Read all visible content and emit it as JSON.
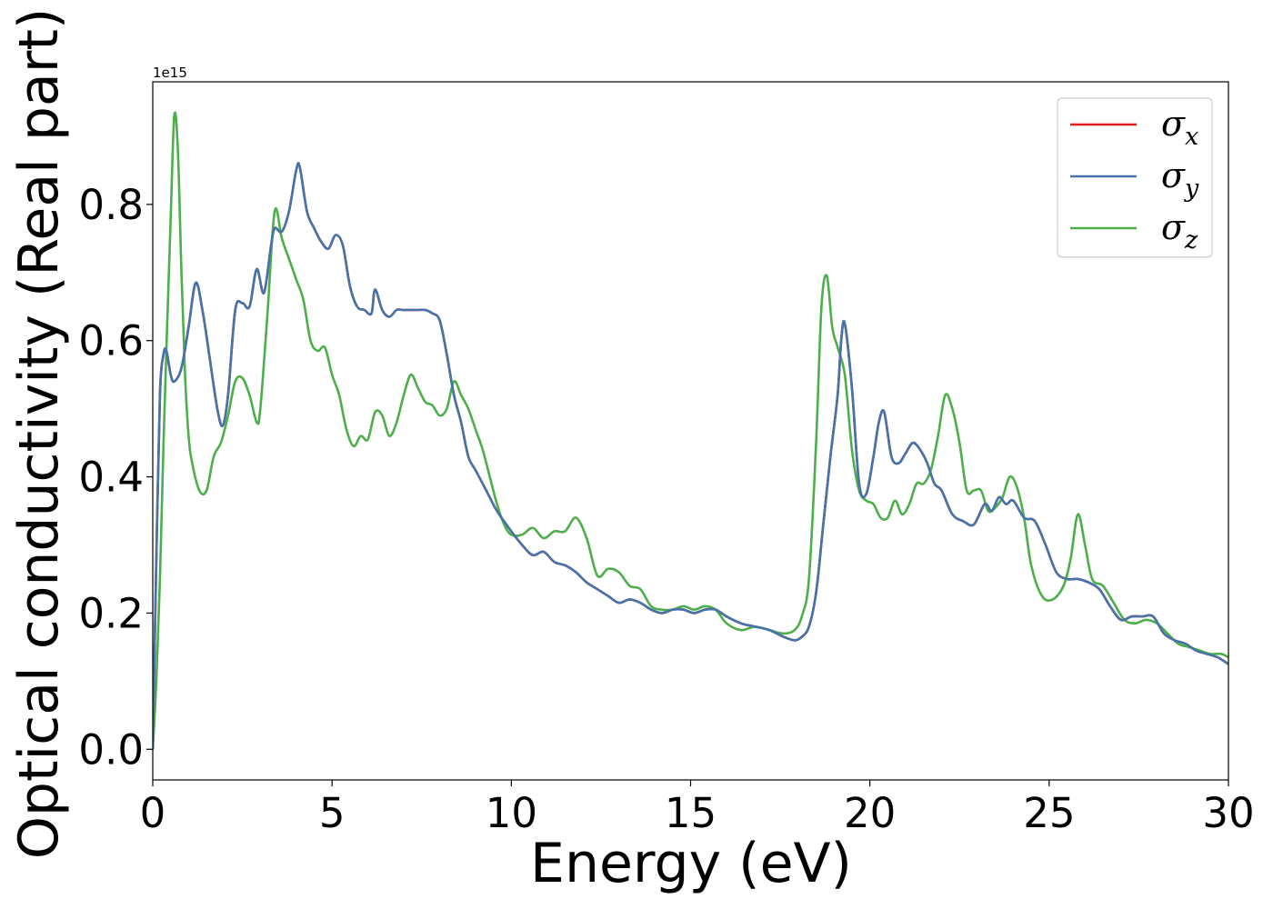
{
  "chart_data": {
    "type": "line",
    "title": "",
    "xlabel": "Energy (eV)",
    "ylabel": "Optical conductivity (Real part)",
    "y_offset_text": "1e15",
    "y_scale_multiplier": 1000000000000000.0,
    "xlim": [
      0,
      30
    ],
    "ylim": [
      -0.045,
      0.98
    ],
    "xticks": [
      0,
      5,
      10,
      15,
      20,
      25,
      30
    ],
    "xtick_labels": [
      "0",
      "5",
      "10",
      "15",
      "20",
      "25",
      "30"
    ],
    "yticks": [
      0.0,
      0.2,
      0.4,
      0.6,
      0.8
    ],
    "ytick_labels": [
      "0.0",
      "0.2",
      "0.4",
      "0.6",
      "0.8"
    ],
    "grid": false,
    "legend_position": "top-right",
    "legend": [
      {
        "symbol": "σ",
        "subscript": "x",
        "color": "#e41a1c"
      },
      {
        "symbol": "σ",
        "subscript": "y",
        "color": "#4474aa"
      },
      {
        "symbol": "σ",
        "subscript": "z",
        "color": "#4daf4a"
      }
    ],
    "series": [
      {
        "name": "σx",
        "color": "#e41a1c",
        "x": [
          0,
          0.1,
          0.2,
          0.3,
          0.38,
          0.5,
          0.6,
          0.8,
          1.0,
          1.2,
          1.4,
          1.6,
          1.8,
          1.95,
          2.1,
          2.3,
          2.5,
          2.7,
          2.9,
          3.1,
          3.3,
          3.4,
          3.6,
          3.8,
          4.0,
          4.1,
          4.3,
          4.5,
          4.7,
          4.9,
          5.1,
          5.3,
          5.5,
          5.7,
          5.9,
          6.1,
          6.2,
          6.4,
          6.6,
          6.8,
          7.0,
          7.2,
          7.4,
          7.6,
          7.8,
          8.0,
          8.2,
          8.4,
          8.6,
          8.8,
          9.0,
          9.3,
          9.6,
          10.0,
          10.3,
          10.6,
          10.9,
          11.2,
          11.5,
          11.8,
          12.1,
          12.4,
          12.7,
          13.0,
          13.3,
          13.6,
          13.9,
          14.2,
          14.5,
          14.8,
          15.1,
          15.4,
          15.7,
          16.0,
          16.4,
          16.8,
          17.2,
          17.6,
          17.9,
          18.1,
          18.3,
          18.5,
          18.7,
          18.9,
          19.1,
          19.2,
          19.3,
          19.5,
          19.7,
          19.9,
          20.1,
          20.25,
          20.4,
          20.6,
          20.8,
          21.0,
          21.2,
          21.4,
          21.6,
          21.8,
          22.0,
          22.3,
          22.6,
          22.9,
          23.2,
          23.4,
          23.6,
          23.8,
          24.0,
          24.3,
          24.6,
          24.9,
          25.2,
          25.5,
          25.8,
          26.1,
          26.4,
          26.7,
          27.0,
          27.3,
          27.6,
          27.9,
          28.2,
          28.5,
          28.8,
          29.1,
          29.4,
          29.7,
          30.0
        ],
        "y": [
          0.0,
          0.28,
          0.52,
          0.58,
          0.585,
          0.55,
          0.54,
          0.56,
          0.62,
          0.685,
          0.64,
          0.57,
          0.5,
          0.475,
          0.52,
          0.645,
          0.655,
          0.65,
          0.705,
          0.67,
          0.74,
          0.765,
          0.76,
          0.79,
          0.85,
          0.855,
          0.79,
          0.765,
          0.745,
          0.735,
          0.755,
          0.74,
          0.68,
          0.65,
          0.645,
          0.64,
          0.675,
          0.645,
          0.635,
          0.645,
          0.645,
          0.645,
          0.645,
          0.645,
          0.64,
          0.63,
          0.58,
          0.52,
          0.48,
          0.43,
          0.41,
          0.38,
          0.35,
          0.32,
          0.3,
          0.285,
          0.29,
          0.275,
          0.27,
          0.26,
          0.245,
          0.235,
          0.225,
          0.215,
          0.22,
          0.215,
          0.205,
          0.2,
          0.205,
          0.205,
          0.2,
          0.205,
          0.205,
          0.195,
          0.185,
          0.18,
          0.175,
          0.165,
          0.16,
          0.165,
          0.18,
          0.23,
          0.33,
          0.43,
          0.52,
          0.6,
          0.625,
          0.53,
          0.39,
          0.375,
          0.43,
          0.48,
          0.495,
          0.43,
          0.42,
          0.435,
          0.45,
          0.44,
          0.42,
          0.39,
          0.38,
          0.345,
          0.335,
          0.33,
          0.36,
          0.35,
          0.37,
          0.36,
          0.365,
          0.34,
          0.335,
          0.3,
          0.26,
          0.25,
          0.25,
          0.245,
          0.235,
          0.21,
          0.19,
          0.195,
          0.195,
          0.195,
          0.17,
          0.16,
          0.155,
          0.145,
          0.14,
          0.135,
          0.125
        ]
      },
      {
        "name": "σy",
        "color": "#4474aa",
        "x": [
          0,
          0.1,
          0.2,
          0.3,
          0.38,
          0.5,
          0.6,
          0.8,
          1.0,
          1.2,
          1.4,
          1.6,
          1.8,
          1.95,
          2.1,
          2.3,
          2.5,
          2.7,
          2.9,
          3.1,
          3.3,
          3.4,
          3.6,
          3.8,
          4.0,
          4.1,
          4.3,
          4.5,
          4.7,
          4.9,
          5.1,
          5.3,
          5.5,
          5.7,
          5.9,
          6.1,
          6.2,
          6.4,
          6.6,
          6.8,
          7.0,
          7.2,
          7.4,
          7.6,
          7.8,
          8.0,
          8.2,
          8.4,
          8.6,
          8.8,
          9.0,
          9.3,
          9.6,
          10.0,
          10.3,
          10.6,
          10.9,
          11.2,
          11.5,
          11.8,
          12.1,
          12.4,
          12.7,
          13.0,
          13.3,
          13.6,
          13.9,
          14.2,
          14.5,
          14.8,
          15.1,
          15.4,
          15.7,
          16.0,
          16.4,
          16.8,
          17.2,
          17.6,
          17.9,
          18.1,
          18.3,
          18.5,
          18.7,
          18.9,
          19.1,
          19.2,
          19.3,
          19.5,
          19.7,
          19.9,
          20.1,
          20.25,
          20.4,
          20.6,
          20.8,
          21.0,
          21.2,
          21.4,
          21.6,
          21.8,
          22.0,
          22.3,
          22.6,
          22.9,
          23.2,
          23.4,
          23.6,
          23.8,
          24.0,
          24.3,
          24.6,
          24.9,
          25.2,
          25.5,
          25.8,
          26.1,
          26.4,
          26.7,
          27.0,
          27.3,
          27.6,
          27.9,
          28.2,
          28.5,
          28.8,
          29.1,
          29.4,
          29.7,
          30.0
        ],
        "y": [
          0.0,
          0.28,
          0.52,
          0.58,
          0.585,
          0.55,
          0.54,
          0.56,
          0.62,
          0.685,
          0.64,
          0.57,
          0.5,
          0.475,
          0.52,
          0.645,
          0.655,
          0.65,
          0.705,
          0.67,
          0.74,
          0.765,
          0.76,
          0.79,
          0.85,
          0.855,
          0.79,
          0.765,
          0.745,
          0.735,
          0.755,
          0.74,
          0.68,
          0.65,
          0.645,
          0.64,
          0.675,
          0.645,
          0.635,
          0.645,
          0.645,
          0.645,
          0.645,
          0.645,
          0.64,
          0.63,
          0.58,
          0.52,
          0.48,
          0.43,
          0.41,
          0.38,
          0.35,
          0.32,
          0.3,
          0.285,
          0.29,
          0.275,
          0.27,
          0.26,
          0.245,
          0.235,
          0.225,
          0.215,
          0.22,
          0.215,
          0.205,
          0.2,
          0.205,
          0.205,
          0.2,
          0.205,
          0.205,
          0.195,
          0.185,
          0.18,
          0.175,
          0.165,
          0.16,
          0.165,
          0.18,
          0.23,
          0.33,
          0.43,
          0.52,
          0.6,
          0.625,
          0.53,
          0.39,
          0.375,
          0.43,
          0.48,
          0.495,
          0.43,
          0.42,
          0.435,
          0.45,
          0.44,
          0.42,
          0.39,
          0.38,
          0.345,
          0.335,
          0.33,
          0.36,
          0.35,
          0.37,
          0.36,
          0.365,
          0.34,
          0.335,
          0.3,
          0.26,
          0.25,
          0.25,
          0.245,
          0.235,
          0.21,
          0.19,
          0.195,
          0.195,
          0.195,
          0.17,
          0.16,
          0.155,
          0.145,
          0.14,
          0.135,
          0.125
        ]
      },
      {
        "name": "σz",
        "color": "#4daf4a",
        "x": [
          0,
          0.1,
          0.2,
          0.3,
          0.4,
          0.5,
          0.6,
          0.7,
          0.8,
          0.9,
          1.0,
          1.1,
          1.3,
          1.5,
          1.7,
          1.9,
          2.1,
          2.3,
          2.5,
          2.7,
          2.9,
          3.0,
          3.2,
          3.4,
          3.6,
          3.8,
          4.0,
          4.2,
          4.4,
          4.6,
          4.8,
          5.0,
          5.2,
          5.4,
          5.6,
          5.8,
          6.0,
          6.2,
          6.4,
          6.6,
          6.8,
          7.0,
          7.2,
          7.4,
          7.6,
          7.8,
          8.0,
          8.2,
          8.4,
          8.6,
          8.8,
          9.0,
          9.2,
          9.4,
          9.6,
          9.8,
          10.0,
          10.3,
          10.6,
          10.9,
          11.2,
          11.5,
          11.8,
          12.1,
          12.4,
          12.7,
          13.0,
          13.3,
          13.6,
          13.9,
          14.2,
          14.5,
          14.8,
          15.1,
          15.4,
          15.7,
          16.0,
          16.4,
          16.8,
          17.2,
          17.6,
          17.9,
          18.1,
          18.3,
          18.5,
          18.65,
          18.8,
          18.95,
          19.1,
          19.3,
          19.5,
          19.7,
          19.9,
          20.1,
          20.3,
          20.5,
          20.7,
          20.9,
          21.1,
          21.3,
          21.5,
          21.7,
          21.9,
          22.1,
          22.3,
          22.5,
          22.7,
          22.9,
          23.1,
          23.3,
          23.5,
          23.7,
          23.9,
          24.1,
          24.3,
          24.5,
          24.8,
          25.1,
          25.4,
          25.6,
          25.8,
          26.0,
          26.2,
          26.5,
          26.8,
          27.1,
          27.4,
          27.7,
          28.0,
          28.3,
          28.6,
          28.9,
          29.2,
          29.5,
          29.8,
          30.0
        ],
        "y": [
          0.0,
          0.1,
          0.25,
          0.45,
          0.62,
          0.78,
          0.93,
          0.88,
          0.7,
          0.55,
          0.46,
          0.42,
          0.38,
          0.38,
          0.43,
          0.45,
          0.49,
          0.54,
          0.545,
          0.52,
          0.48,
          0.5,
          0.64,
          0.79,
          0.75,
          0.72,
          0.69,
          0.66,
          0.6,
          0.585,
          0.59,
          0.55,
          0.52,
          0.47,
          0.445,
          0.46,
          0.455,
          0.495,
          0.49,
          0.46,
          0.48,
          0.52,
          0.55,
          0.53,
          0.51,
          0.505,
          0.49,
          0.5,
          0.54,
          0.52,
          0.5,
          0.47,
          0.44,
          0.4,
          0.36,
          0.33,
          0.315,
          0.315,
          0.325,
          0.31,
          0.32,
          0.32,
          0.34,
          0.31,
          0.255,
          0.265,
          0.26,
          0.24,
          0.235,
          0.21,
          0.205,
          0.205,
          0.21,
          0.205,
          0.21,
          0.205,
          0.185,
          0.175,
          0.18,
          0.175,
          0.17,
          0.175,
          0.195,
          0.25,
          0.45,
          0.65,
          0.695,
          0.62,
          0.59,
          0.55,
          0.44,
          0.38,
          0.365,
          0.36,
          0.34,
          0.34,
          0.365,
          0.345,
          0.36,
          0.39,
          0.39,
          0.41,
          0.46,
          0.52,
          0.5,
          0.45,
          0.38,
          0.38,
          0.38,
          0.35,
          0.355,
          0.37,
          0.4,
          0.385,
          0.34,
          0.27,
          0.225,
          0.22,
          0.24,
          0.28,
          0.345,
          0.3,
          0.25,
          0.24,
          0.215,
          0.19,
          0.185,
          0.19,
          0.185,
          0.17,
          0.155,
          0.15,
          0.145,
          0.14,
          0.14,
          0.135
        ]
      }
    ]
  }
}
